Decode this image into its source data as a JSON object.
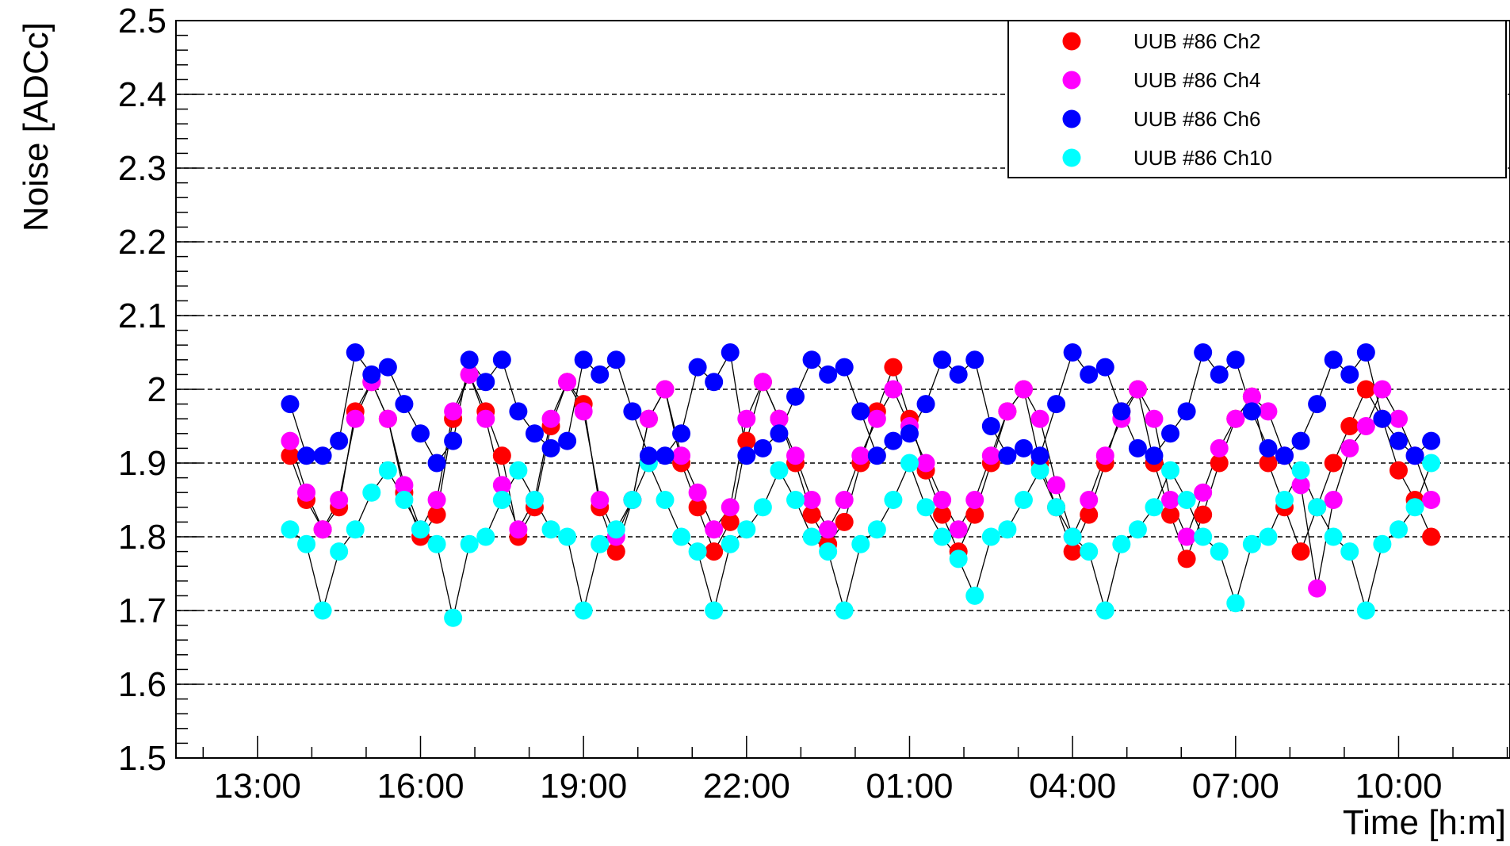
{
  "chart_data": {
    "type": "scatter",
    "title": "",
    "xlabel": "Time [h:m]",
    "ylabel": "Noise [ADCc]",
    "ylim": [
      1.5,
      2.5
    ],
    "xlim": [
      11.5,
      36.05
    ],
    "x_unit": "hours",
    "grid": "horizontal dashed",
    "legend_position": "top-right",
    "yticks": [
      1.5,
      1.6,
      1.7,
      1.8,
      1.9,
      2.0,
      2.1,
      2.2,
      2.3,
      2.4,
      2.5
    ],
    "ytick_labels": [
      "1.5",
      "1.6",
      "1.7",
      "1.8",
      "1.9",
      "2",
      "2.1",
      "2.2",
      "2.3",
      "2.4",
      "2.5"
    ],
    "xticks": [
      13,
      16,
      19,
      22,
      25,
      28,
      31,
      34
    ],
    "xtick_labels": [
      "13:00",
      "16:00",
      "19:00",
      "22:00",
      "01:00",
      "04:00",
      "07:00",
      "10:00"
    ],
    "x": [
      13.6,
      13.9,
      14.2,
      14.5,
      14.8,
      15.1,
      15.4,
      15.7,
      16.0,
      16.3,
      16.6,
      16.9,
      17.2,
      17.5,
      17.8,
      18.1,
      18.4,
      18.7,
      19.0,
      19.3,
      19.6,
      19.9,
      20.2,
      20.5,
      20.8,
      21.1,
      21.4,
      21.7,
      22.0,
      22.3,
      22.6,
      22.9,
      23.2,
      23.5,
      23.8,
      24.1,
      24.4,
      24.7,
      25.0,
      25.3,
      25.6,
      25.9,
      26.2,
      26.5,
      26.8,
      27.1,
      27.4,
      27.7,
      28.0,
      28.3,
      28.6,
      28.9,
      29.2,
      29.5,
      29.8,
      30.1,
      30.4,
      30.7,
      31.0,
      31.3,
      31.6,
      31.9,
      32.2,
      32.5,
      32.8,
      33.1,
      33.4,
      33.7,
      34.0,
      34.3,
      34.6
    ],
    "series": [
      {
        "name": "UUB #86 Ch2",
        "color": "#ff0000",
        "y": [
          1.91,
          1.85,
          1.81,
          1.84,
          1.97,
          2.01,
          1.96,
          1.86,
          1.8,
          1.83,
          1.96,
          2.02,
          1.97,
          1.91,
          1.8,
          1.84,
          1.95,
          2.01,
          1.98,
          1.84,
          1.78,
          1.85,
          1.96,
          2.0,
          1.9,
          1.84,
          1.78,
          1.82,
          1.93,
          2.01,
          1.96,
          1.9,
          1.83,
          1.79,
          1.82,
          1.9,
          1.97,
          2.03,
          1.96,
          1.89,
          1.83,
          1.78,
          1.83,
          1.9,
          1.97,
          2.0,
          1.9,
          1.84,
          1.78,
          1.83,
          1.9,
          1.97,
          2.0,
          1.9,
          1.83,
          1.77,
          1.83,
          1.9,
          1.96,
          1.99,
          1.9,
          1.84,
          1.78,
          1.84,
          1.9,
          1.95,
          2.0,
          1.96,
          1.89,
          1.85,
          1.8
        ]
      },
      {
        "name": "UUB #86 Ch4",
        "color": "#ff00ff",
        "y": [
          1.93,
          1.86,
          1.81,
          1.85,
          1.96,
          2.01,
          1.96,
          1.87,
          1.81,
          1.85,
          1.97,
          2.02,
          1.96,
          1.87,
          1.81,
          1.85,
          1.96,
          2.01,
          1.97,
          1.85,
          1.8,
          1.85,
          1.96,
          2.0,
          1.91,
          1.86,
          1.81,
          1.84,
          1.96,
          2.01,
          1.96,
          1.91,
          1.85,
          1.81,
          1.85,
          1.91,
          1.96,
          2.0,
          1.95,
          1.9,
          1.85,
          1.81,
          1.85,
          1.91,
          1.97,
          2.0,
          1.96,
          1.87,
          1.8,
          1.85,
          1.91,
          1.96,
          2.0,
          1.96,
          1.85,
          1.8,
          1.86,
          1.92,
          1.96,
          1.99,
          1.97,
          1.91,
          1.87,
          1.73,
          1.85,
          1.92,
          1.95,
          2.0,
          1.96,
          1.91,
          1.85
        ]
      },
      {
        "name": "UUB #86 Ch6",
        "color": "#0000ff",
        "y": [
          1.98,
          1.91,
          1.91,
          1.93,
          2.05,
          2.02,
          2.03,
          1.98,
          1.94,
          1.9,
          1.93,
          2.04,
          2.01,
          2.04,
          1.97,
          1.94,
          1.92,
          1.93,
          2.04,
          2.02,
          2.04,
          1.97,
          1.91,
          1.91,
          1.94,
          2.03,
          2.01,
          2.05,
          1.91,
          1.92,
          1.94,
          1.99,
          2.04,
          2.02,
          2.03,
          1.97,
          1.91,
          1.93,
          1.94,
          1.98,
          2.04,
          2.02,
          2.04,
          1.95,
          1.91,
          1.92,
          1.91,
          1.98,
          2.05,
          2.02,
          2.03,
          1.97,
          1.92,
          1.91,
          1.94,
          1.97,
          2.05,
          2.02,
          2.04,
          1.97,
          1.92,
          1.91,
          1.93,
          1.98,
          2.04,
          2.02,
          2.05,
          1.96,
          1.93,
          1.91,
          1.93
        ]
      },
      {
        "name": "UUB #86 Ch10",
        "color": "#00ffff",
        "y": [
          1.81,
          1.79,
          1.7,
          1.78,
          1.81,
          1.86,
          1.89,
          1.85,
          1.81,
          1.79,
          1.69,
          1.79,
          1.8,
          1.85,
          1.89,
          1.85,
          1.81,
          1.8,
          1.7,
          1.79,
          1.81,
          1.85,
          1.9,
          1.85,
          1.8,
          1.78,
          1.7,
          1.79,
          1.81,
          1.84,
          1.89,
          1.85,
          1.8,
          1.78,
          1.7,
          1.79,
          1.81,
          1.85,
          1.9,
          1.84,
          1.8,
          1.77,
          1.72,
          1.8,
          1.81,
          1.85,
          1.89,
          1.84,
          1.8,
          1.78,
          1.7,
          1.79,
          1.81,
          1.84,
          1.89,
          1.85,
          1.8,
          1.78,
          1.71,
          1.79,
          1.8,
          1.85,
          1.89,
          1.84,
          1.8,
          1.78,
          1.7,
          1.79,
          1.81,
          1.84,
          1.9
        ]
      }
    ]
  }
}
